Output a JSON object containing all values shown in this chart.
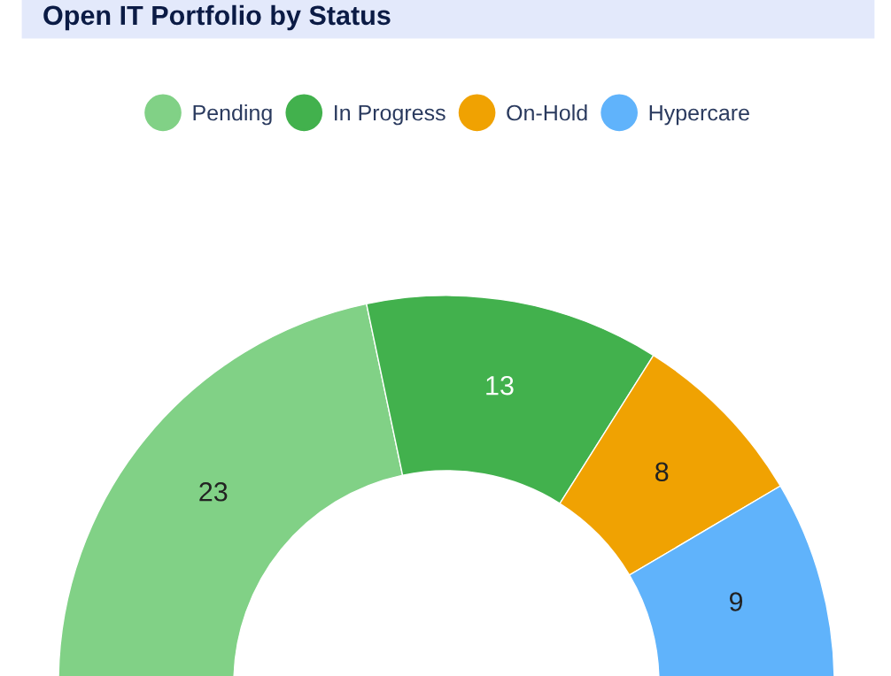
{
  "chart_data": {
    "type": "donut",
    "title": "Open IT Portfolio by Status",
    "categories": [
      "Pending",
      "In Progress",
      "On-Hold",
      "Hypercare"
    ],
    "values": [
      23,
      13,
      8,
      9
    ],
    "colors": [
      "#81d186",
      "#42b14d",
      "#f0a202",
      "#60b3fb"
    ],
    "data_labels": true,
    "legend": "top"
  }
}
